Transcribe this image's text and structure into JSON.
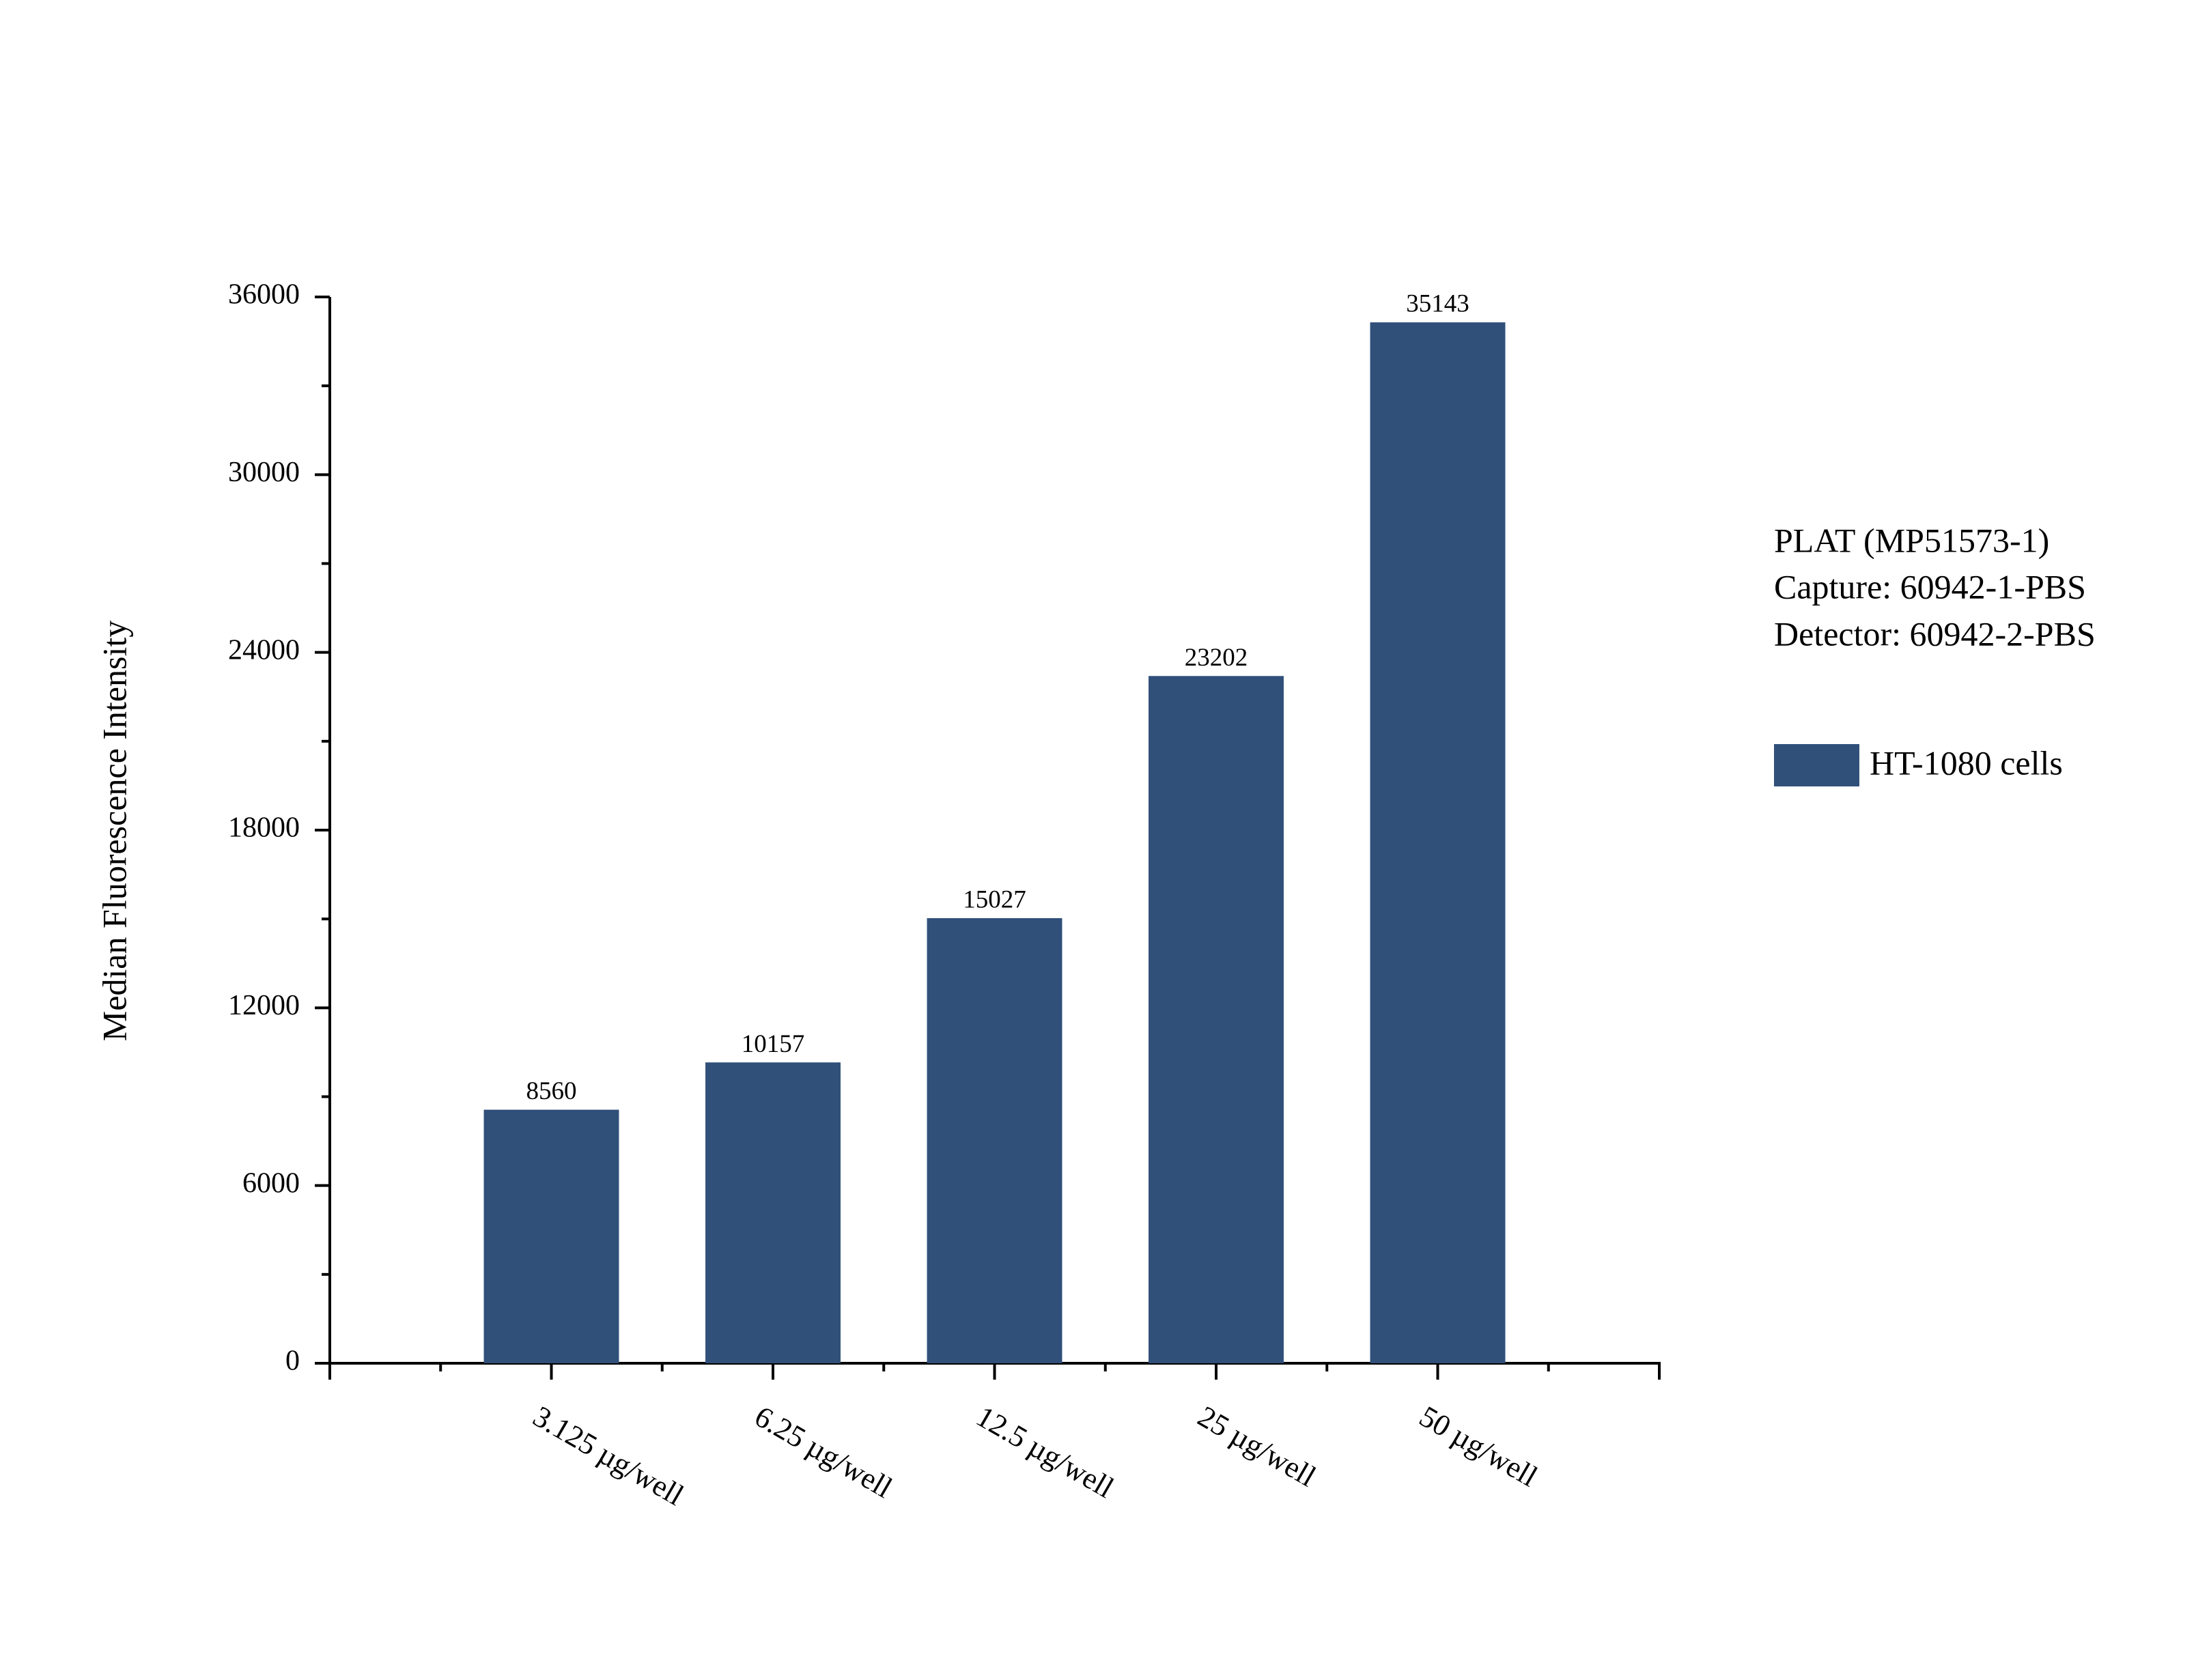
{
  "chart_data": {
    "type": "bar",
    "y_label": "Median Fluorescence Intensity",
    "annotations": [
      "PLAT (MP51573-1)",
      "Capture: 60942-1-PBS",
      "Detector: 60942-2-PBS"
    ],
    "categories": [
      "3.125 µg/well",
      "6.25 µg/well",
      "12.5 µg/well",
      "25 µg/well",
      "50 µg/well"
    ],
    "series": [
      {
        "name": "HT-1080 cells",
        "color": "#30507a",
        "values": [
          8560,
          10157,
          15027,
          23202,
          35143
        ]
      }
    ],
    "ylim": [
      0,
      36000
    ],
    "yticks": [
      0,
      6000,
      12000,
      18000,
      24000,
      30000,
      36000
    ],
    "grid": false
  }
}
